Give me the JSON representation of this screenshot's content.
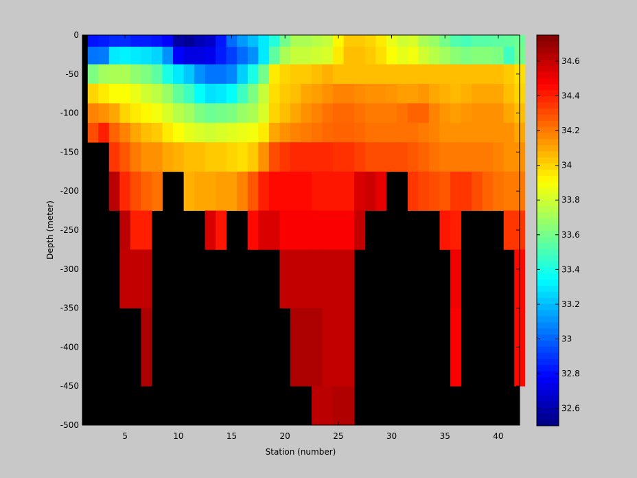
{
  "chart_data": {
    "type": "heatmap",
    "title": "",
    "xlabel": "Station (number)",
    "ylabel": "Depth (meter)",
    "xlim": [
      1,
      42
    ],
    "ylim": [
      -500,
      0
    ],
    "x_ticks": [
      5,
      10,
      15,
      20,
      25,
      30,
      35,
      40
    ],
    "y_ticks": [
      0,
      -50,
      -100,
      -150,
      -200,
      -250,
      -300,
      -350,
      -400,
      -450,
      -500
    ],
    "colorbar": {
      "range": [
        32.5,
        34.75
      ],
      "colormap": "jet",
      "ticks": [
        "32.6",
        "32.8",
        "33",
        "33.2",
        "33.4",
        "33.6",
        "33.8",
        "34",
        "34.2",
        "34.4",
        "34.6"
      ],
      "tick_values": [
        32.6,
        32.8,
        33.0,
        33.2,
        33.4,
        33.6,
        33.8,
        34.0,
        34.2,
        34.4,
        34.6
      ]
    },
    "no_data_color": "#000000",
    "depths": [
      -5,
      -25,
      -50,
      -75,
      -100,
      -125,
      -150,
      -200,
      -250,
      -300,
      -400,
      -500
    ],
    "stations": [
      2,
      3,
      4,
      5,
      6,
      7,
      8,
      9,
      10,
      11,
      12,
      13,
      14,
      15,
      16,
      17,
      18,
      19,
      20,
      21,
      22,
      23,
      24,
      25,
      26,
      27,
      28,
      29,
      30,
      31,
      32,
      33,
      34,
      35,
      36,
      37,
      38,
      39,
      40,
      41,
      42
    ],
    "rows": [
      "32.82 32.84 32.87 32.88 32.84 32.84 32.82 32.78 32.58 32.55 32.62 32.66 32.83 33.02 33.12 33.20 33.30 33.42 33.60 33.72 33.72 33.75 33.78 33.92 34.02 34.02 34.00 33.95 33.86 33.80 33.82 33.72 33.68 33.60 33.52 33.50 33.54 33.54 33.55 33.56 33.58",
      "33.04 33.05 33.30 33.32 33.30 33.28 33.25 33.10 32.78 32.72 32.72 32.74 32.84 32.92 33.02 33.10 33.30 33.55 33.72 33.78 33.78 33.80 33.82 33.95 34.05 34.05 34.02 33.98 33.90 33.85 33.88 33.80 33.75 33.70 33.65 33.62 33.64 33.64 33.62 33.48 33.60",
      "33.62 33.70 33.72 33.72 33.66 33.62 33.55 33.40 33.30 33.22 33.10 33.04 33.04 33.08 33.24 33.40 33.60 33.95 34.00 34.02 34.02 34.05 34.08 34.05 34.05 34.05 34.05 34.05 34.05 34.05 34.05 34.05 34.05 34.05 34.05 34.05 34.05 34.05 34.05 34.02 33.98",
      "34.00 33.95 33.90 33.90 33.86 33.80 33.76 33.68 33.56 33.48 33.35 33.28 33.30 33.35 33.48 33.62 33.78 33.98 34.02 34.05 34.10 34.12 34.15 34.18 34.18 34.16 34.15 34.15 34.14 34.12 34.12 34.14 34.10 34.08 34.06 34.08 34.10 34.10 34.10 34.05 34.00",
      "34.18 34.15 34.10 34.00 33.95 33.92 33.88 33.82 33.75 33.70 33.62 33.58 33.60 33.62 33.68 33.72 33.82 34.00 34.05 34.10 34.15 34.18 34.22 34.24 34.24 34.22 34.20 34.20 34.20 34.22 34.25 34.25 34.18 34.14 34.12 34.14 34.15 34.15 34.15 34.10 34.05",
      "34.30 34.40 34.25 34.18 34.10 34.05 34.02 33.95 33.90 33.85 33.82 33.80 33.82 33.84 33.86 33.88 33.95 34.10 34.15 34.18 34.20 34.22 34.24 34.25 34.25 34.24 34.22 34.22 34.22 34.22 34.22 34.20 34.18 34.15 34.15 34.15 34.15 34.15 34.15 34.15 34.10",
      "NaN NaN 34.35 34.28 34.20 34.15 34.15 34.10 34.08 34.05 34.05 34.02 34.02 34.00 33.98 34.02 34.15 34.30 34.35 34.38 34.38 34.38 34.38 34.36 34.36 34.33 34.30 34.30 34.30 34.30 34.28 34.25 34.22 34.20 34.20 34.20 34.20 34.20 34.18 34.15 34.15",
      "NaN NaN 34.62 34.38 34.30 34.25 34.22 NaN NaN 34.08 34.10 34.10 34.12 34.12 34.18 34.28 34.40 34.45 34.45 34.45 34.45 34.42 34.42 34.42 34.42 34.55 34.58 34.52 NaN NaN 34.35 34.32 34.30 34.28 34.35 34.35 34.30 34.25 34.22 34.20 34.20",
      "NaN NaN NaN 34.62 34.40 34.40 NaN NaN NaN NaN NaN 34.55 34.42 NaN NaN 34.45 34.55 34.55 34.48 34.48 34.48 34.48 34.48 34.48 34.48 34.60 NaN NaN NaN NaN NaN NaN NaN 34.42 34.40 NaN NaN NaN NaN 34.35 34.35",
      "NaN NaN NaN 34.60 34.60 34.60 NaN NaN NaN NaN NaN NaN NaN NaN NaN NaN NaN NaN 34.60 34.60 34.60 34.60 34.60 34.60 34.60 NaN NaN NaN NaN NaN NaN NaN NaN NaN 34.50 NaN NaN NaN NaN NaN 34.45",
      "NaN NaN NaN NaN NaN 34.65 NaN NaN NaN NaN NaN NaN NaN NaN NaN NaN NaN NaN NaN 34.65 34.65 34.65 34.60 34.60 34.60 NaN NaN NaN NaN NaN NaN NaN NaN NaN 34.48 NaN NaN NaN NaN NaN 34.45",
      "NaN NaN NaN NaN NaN NaN NaN NaN NaN NaN NaN NaN NaN NaN NaN NaN NaN NaN NaN NaN NaN 34.62 34.62 34.64 34.64 NaN NaN NaN NaN NaN NaN NaN NaN NaN NaN NaN NaN NaN NaN NaN NaN"
    ]
  }
}
